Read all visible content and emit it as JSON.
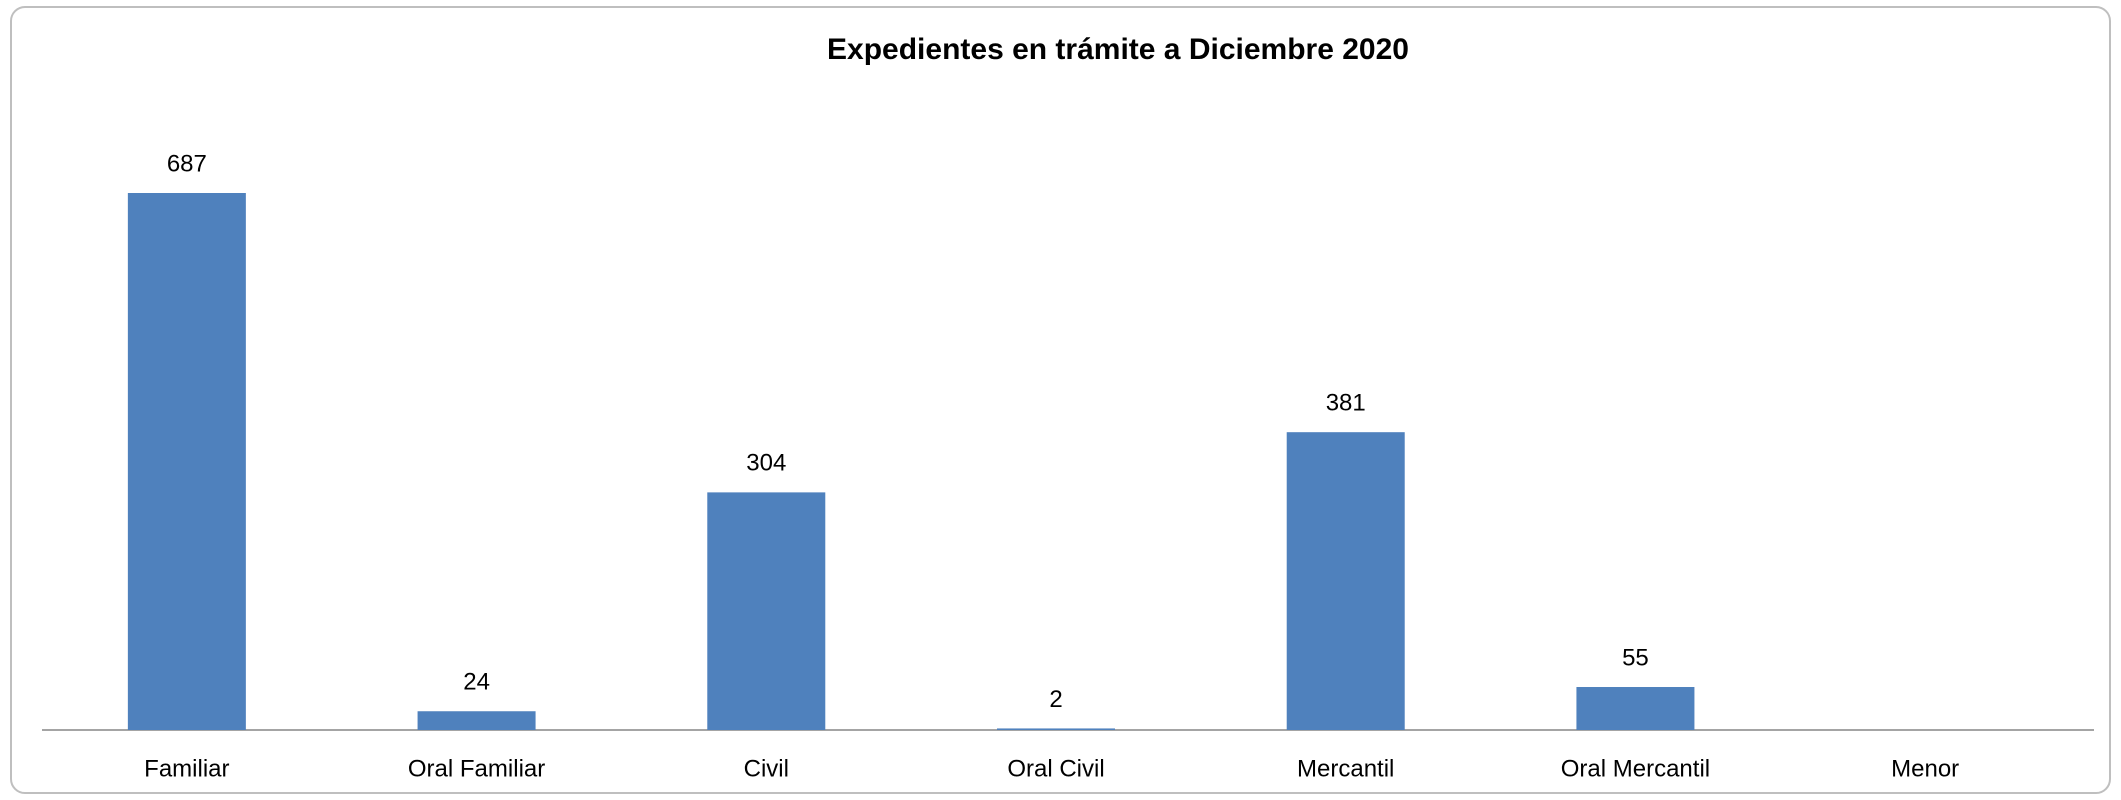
{
  "chart_data": {
    "type": "bar",
    "title": "Expedientes en trámite a Diciembre 2020",
    "categories": [
      "Familiar",
      "Oral Familiar",
      "Civil",
      "Oral Civil",
      "Mercantil",
      "Oral Mercantil",
      "Menor"
    ],
    "values": [
      687,
      24,
      304,
      2,
      381,
      55,
      null
    ],
    "color": "#4f81bd"
  }
}
